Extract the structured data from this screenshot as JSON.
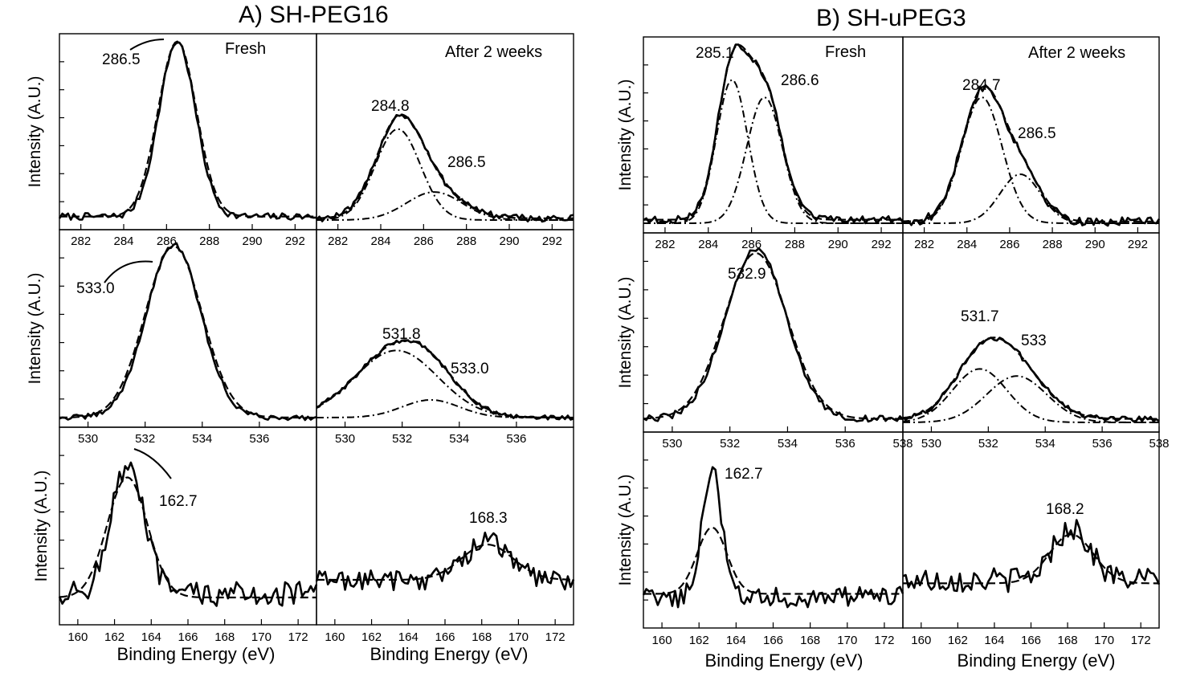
{
  "figure": {
    "group_a_title": "A) SH-PEG16",
    "group_b_title": "B) SH-uPEG3",
    "xlabel": "Binding Energy (eV)",
    "ylabel": "Intensity (A.U.)"
  },
  "chart_data": [
    {
      "id": "A-C1s-fresh",
      "type": "line",
      "group": "A) SH-PEG16",
      "column": "Fresh",
      "xlim": [
        281,
        293
      ],
      "ticks": [
        282,
        284,
        286,
        288,
        290,
        292
      ],
      "panel_label": "Fresh",
      "peak_labels": [
        "286.5"
      ],
      "series": [
        {
          "style": "solid",
          "center": 286.5,
          "sigma": 0.85,
          "amp": 1.0,
          "noise": 0.02,
          "baseline": 0.02
        },
        {
          "style": "dashed",
          "center": 286.5,
          "sigma": 0.9,
          "amp": 1.0,
          "baseline": 0.02
        }
      ]
    },
    {
      "id": "A-C1s-2weeks",
      "type": "line",
      "group": "A) SH-PEG16",
      "column": "After 2 weeks",
      "xlim": [
        281,
        293
      ],
      "ticks": [
        282,
        284,
        286,
        288,
        290,
        292
      ],
      "panel_label": "After 2 weeks",
      "peak_labels": [
        "284.8",
        "286.5"
      ],
      "series": [
        {
          "style": "solid",
          "peaks": [
            [
              284.8,
              1.05,
              0.52
            ],
            [
              286.5,
              1.3,
              0.16
            ]
          ],
          "noise": 0.02,
          "baseline": 0.01
        },
        {
          "style": "dashed",
          "peaks": [
            [
              284.8,
              1.05,
              0.52
            ],
            [
              286.5,
              1.3,
              0.16
            ]
          ],
          "baseline": 0.01
        },
        {
          "style": "dashdot",
          "center": 284.8,
          "sigma": 1.05,
          "amp": 0.52,
          "baseline": 0.0
        },
        {
          "style": "dashdot",
          "center": 286.5,
          "sigma": 1.3,
          "amp": 0.16,
          "baseline": 0.0
        }
      ]
    },
    {
      "id": "A-O1s-fresh",
      "type": "line",
      "group": "A) SH-PEG16",
      "column": "Fresh",
      "xlim": [
        529,
        538
      ],
      "ticks": [
        530,
        532,
        534,
        536
      ],
      "panel_label": "",
      "peak_labels": [
        "533.0"
      ],
      "series": [
        {
          "style": "solid",
          "center": 533.0,
          "sigma": 0.95,
          "amp": 0.98,
          "noise": 0.015,
          "baseline": 0.0
        },
        {
          "style": "dashed",
          "center": 533.0,
          "sigma": 1.0,
          "amp": 0.97,
          "baseline": 0.0
        }
      ]
    },
    {
      "id": "A-O1s-2weeks",
      "type": "line",
      "group": "A) SH-PEG16",
      "column": "After 2 weeks",
      "xlim": [
        529,
        538
      ],
      "ticks": [
        530,
        532,
        534,
        536
      ],
      "panel_label": "",
      "peak_labels": [
        "531.8",
        "533.0"
      ],
      "series": [
        {
          "style": "solid",
          "peaks": [
            [
              531.8,
              1.45,
              0.38
            ],
            [
              533.0,
              1.0,
              0.1
            ]
          ],
          "noise": 0.012,
          "baseline": 0.0
        },
        {
          "style": "dashed",
          "peaks": [
            [
              531.8,
              1.45,
              0.38
            ],
            [
              533.0,
              1.0,
              0.1
            ]
          ],
          "baseline": 0.0
        },
        {
          "style": "dashdot",
          "center": 531.8,
          "sigma": 1.45,
          "amp": 0.38,
          "baseline": 0.0
        },
        {
          "style": "dashdot",
          "center": 533.0,
          "sigma": 1.0,
          "amp": 0.1,
          "baseline": 0.0
        }
      ]
    },
    {
      "id": "A-S2p-fresh",
      "type": "line",
      "group": "A) SH-PEG16",
      "column": "Fresh",
      "xlim": [
        159,
        173
      ],
      "ticks": [
        160,
        162,
        164,
        166,
        168,
        170,
        172
      ],
      "panel_label": "",
      "peak_labels": [
        "162.7"
      ],
      "series": [
        {
          "style": "solid",
          "center": 162.7,
          "sigma": 0.9,
          "amp": 0.72,
          "noise": 0.07,
          "baseline": 0.12
        },
        {
          "style": "dashed",
          "center": 162.7,
          "sigma": 1.1,
          "amp": 0.68,
          "baseline": 0.1
        }
      ]
    },
    {
      "id": "A-S2p-2weeks",
      "type": "line",
      "group": "A) SH-PEG16",
      "column": "After 2 weeks",
      "xlim": [
        159,
        173
      ],
      "ticks": [
        160,
        162,
        164,
        166,
        168,
        170,
        172
      ],
      "panel_label": "",
      "peak_labels": [
        "168.3"
      ],
      "series": [
        {
          "style": "solid",
          "center": 168.3,
          "sigma": 1.2,
          "amp": 0.22,
          "noise": 0.06,
          "baseline": 0.2
        },
        {
          "style": "dashed",
          "center": 168.3,
          "sigma": 1.4,
          "amp": 0.2,
          "baseline": 0.2
        }
      ]
    },
    {
      "id": "B-C1s-fresh",
      "type": "line",
      "group": "B) SH-uPEG3",
      "column": "Fresh",
      "xlim": [
        281,
        293
      ],
      "ticks": [
        282,
        284,
        286,
        288,
        290,
        292
      ],
      "panel_label": "Fresh",
      "peak_labels": [
        "285.1",
        "286.6"
      ],
      "series": [
        {
          "style": "solid",
          "peaks": [
            [
              285.1,
              0.72,
              0.82
            ],
            [
              286.6,
              0.82,
              0.72
            ]
          ],
          "noise": 0.02,
          "baseline": 0.02
        },
        {
          "style": "dashed",
          "peaks": [
            [
              285.1,
              0.72,
              0.82
            ],
            [
              286.6,
              0.82,
              0.72
            ]
          ],
          "baseline": 0.02
        },
        {
          "style": "dashdot",
          "center": 285.1,
          "sigma": 0.72,
          "amp": 0.82,
          "baseline": 0.0
        },
        {
          "style": "dashdot",
          "center": 286.6,
          "sigma": 0.82,
          "amp": 0.72,
          "baseline": 0.0
        }
      ]
    },
    {
      "id": "B-C1s-2weeks",
      "type": "line",
      "group": "B) SH-uPEG3",
      "column": "After 2 weeks",
      "xlim": [
        281,
        293
      ],
      "ticks": [
        282,
        284,
        286,
        288,
        290,
        292
      ],
      "panel_label": "After 2 weeks",
      "peak_labels": [
        "284.7",
        "286.5"
      ],
      "series": [
        {
          "style": "solid",
          "peaks": [
            [
              284.7,
              0.95,
              0.72
            ],
            [
              286.5,
              0.95,
              0.28
            ]
          ],
          "noise": 0.025,
          "baseline": 0.01
        },
        {
          "style": "dashed",
          "peaks": [
            [
              284.7,
              0.95,
              0.72
            ],
            [
              286.5,
              0.95,
              0.28
            ]
          ],
          "baseline": 0.01
        },
        {
          "style": "dashdot",
          "center": 284.7,
          "sigma": 0.95,
          "amp": 0.72,
          "baseline": 0.0
        },
        {
          "style": "dashdot",
          "center": 286.5,
          "sigma": 0.95,
          "amp": 0.28,
          "baseline": 0.0
        }
      ]
    },
    {
      "id": "B-O1s-fresh",
      "type": "line",
      "group": "B) SH-uPEG3",
      "column": "Fresh",
      "xlim": [
        529,
        538
      ],
      "ticks": [
        530,
        532,
        534,
        536,
        538
      ],
      "panel_label": "",
      "peak_labels": [
        "532.9"
      ],
      "series": [
        {
          "style": "solid",
          "center": 532.9,
          "sigma": 1.05,
          "amp": 0.95,
          "noise": 0.02,
          "baseline": 0.02
        },
        {
          "style": "dashed",
          "center": 532.9,
          "sigma": 1.1,
          "amp": 0.93,
          "baseline": 0.02
        }
      ]
    },
    {
      "id": "B-O1s-2weeks",
      "type": "line",
      "group": "B) SH-uPEG3",
      "column": "After 2 weeks",
      "xlim": [
        529,
        538
      ],
      "ticks": [
        530,
        532,
        534,
        536,
        538
      ],
      "panel_label": "",
      "peak_labels": [
        "531.7",
        "533"
      ],
      "series": [
        {
          "style": "solid",
          "peaks": [
            [
              531.7,
              0.95,
              0.3
            ],
            [
              533.0,
              1.05,
              0.26
            ]
          ],
          "noise": 0.015,
          "baseline": 0.02
        },
        {
          "style": "dashed",
          "peaks": [
            [
              531.7,
              0.95,
              0.3
            ],
            [
              533.0,
              1.05,
              0.26
            ]
          ],
          "baseline": 0.02
        },
        {
          "style": "dashdot",
          "center": 531.7,
          "sigma": 0.95,
          "amp": 0.3,
          "baseline": 0.0
        },
        {
          "style": "dashdot",
          "center": 533.0,
          "sigma": 1.05,
          "amp": 0.26,
          "baseline": 0.0
        }
      ]
    },
    {
      "id": "B-S2p-fresh",
      "type": "line",
      "group": "B) SH-uPEG3",
      "column": "Fresh",
      "xlim": [
        159,
        173
      ],
      "ticks": [
        160,
        162,
        164,
        166,
        168,
        170,
        172
      ],
      "panel_label": "",
      "peak_labels": [
        "162.7"
      ],
      "series": [
        {
          "style": "solid",
          "center": 162.7,
          "sigma": 0.55,
          "amp": 0.72,
          "noise": 0.06,
          "baseline": 0.12
        },
        {
          "style": "dashed",
          "center": 162.7,
          "sigma": 0.8,
          "amp": 0.38,
          "baseline": 0.14
        }
      ]
    },
    {
      "id": "B-S2p-2weeks",
      "type": "line",
      "group": "B) SH-uPEG3",
      "column": "After 2 weeks",
      "xlim": [
        159,
        173
      ],
      "ticks": [
        160,
        162,
        164,
        166,
        168,
        170,
        172
      ],
      "panel_label": "",
      "peak_labels": [
        "168.2"
      ],
      "series": [
        {
          "style": "solid",
          "center": 168.2,
          "sigma": 1.0,
          "amp": 0.3,
          "noise": 0.07,
          "baseline": 0.22
        },
        {
          "style": "dashed",
          "center": 168.2,
          "sigma": 1.2,
          "amp": 0.28,
          "baseline": 0.2
        }
      ]
    }
  ]
}
